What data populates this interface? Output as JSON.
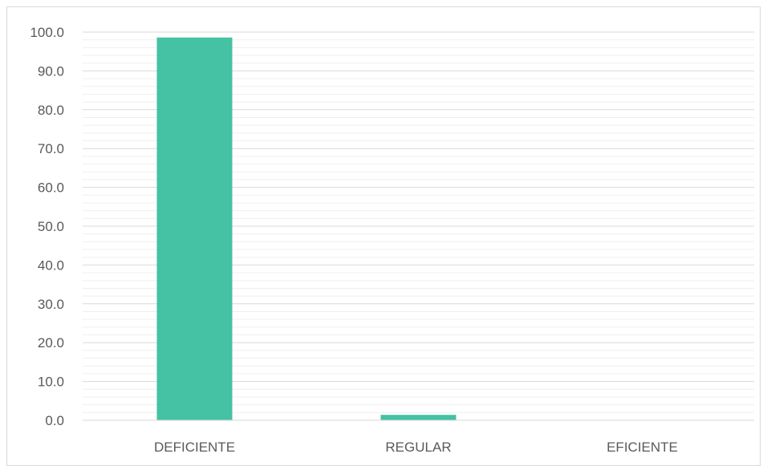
{
  "chart_data": {
    "type": "bar",
    "title": "",
    "xlabel": "",
    "ylabel": "",
    "categories": [
      "DEFICIENTE",
      "REGULAR",
      "EFICIENTE"
    ],
    "values": [
      98.6,
      1.4,
      0.0
    ],
    "ylim": [
      0,
      100
    ],
    "major_tick_step": 10,
    "minor_tick_step": 2,
    "tick_format_decimals": 1,
    "grid": true,
    "legend": "none",
    "colors": {
      "bar": "#45c1a3",
      "major_grid": "#d9d9d9",
      "minor_grid": "#efefef",
      "axis_line": "#d9d9d9",
      "tick_text": "#595959"
    }
  }
}
